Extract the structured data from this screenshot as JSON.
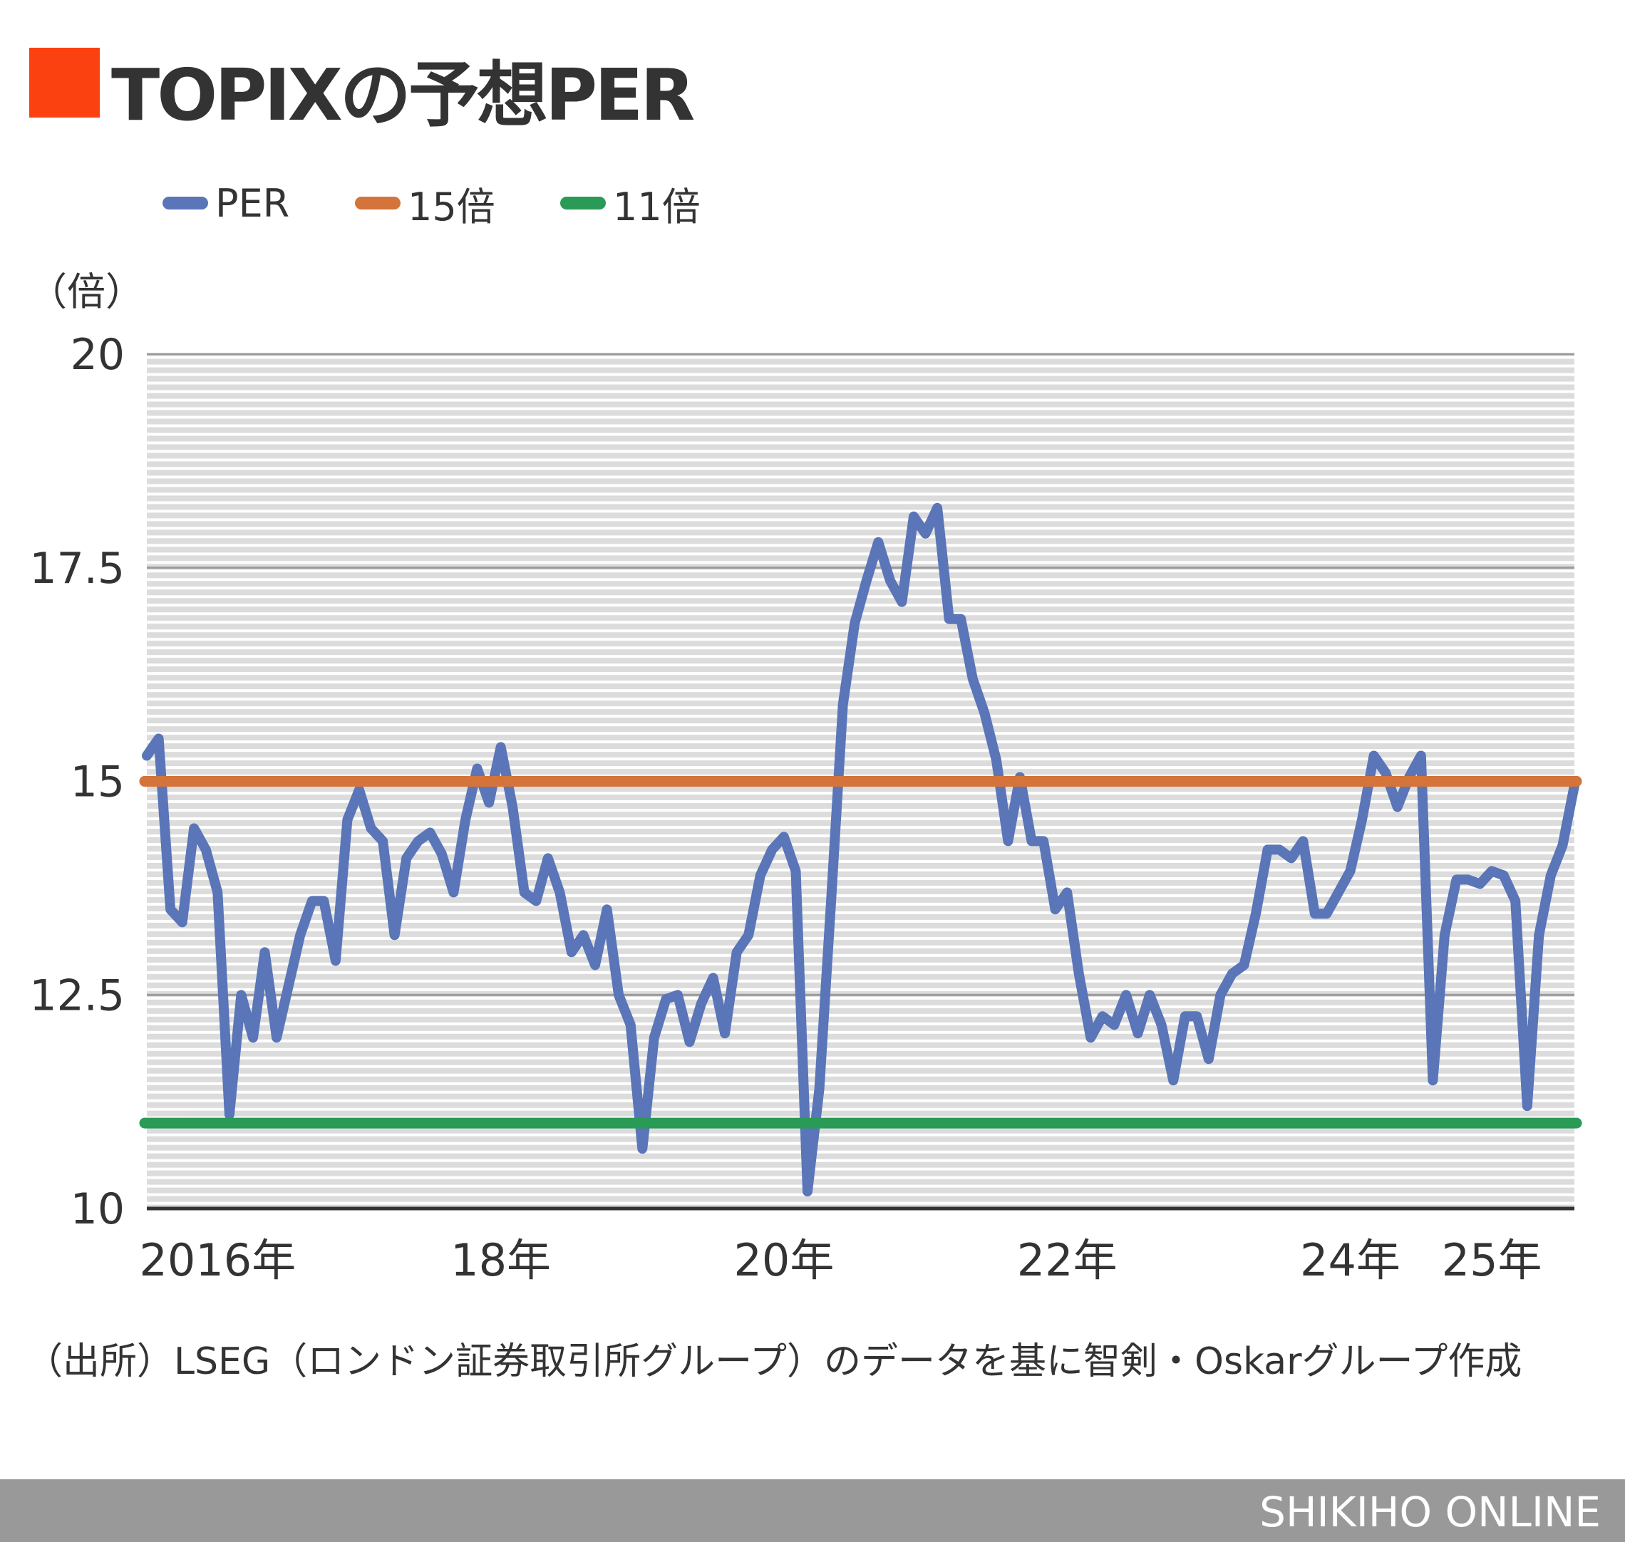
{
  "title": "TOPIXの予想PER",
  "colors": {
    "title_mark": "#FC4111",
    "per": "#5A75B8",
    "line15": "#D4743A",
    "line11": "#2A9A57",
    "footer": "#999999"
  },
  "legend": [
    {
      "label": "PER",
      "color": "#5A75B8"
    },
    {
      "label": "15倍",
      "color": "#D4743A"
    },
    {
      "label": "11倍",
      "color": "#2A9A57"
    }
  ],
  "unit_label": "（倍）",
  "source": "（出所）LSEG（ロンドン証券取引所グループ）のデータを基に智剣・Oskarグループ作成",
  "footer": "SHIKIHO ONLINE",
  "chart_data": {
    "type": "line",
    "title": "TOPIXの予想PER",
    "ylabel": "（倍）",
    "ylim": [
      10,
      20
    ],
    "xlim": [
      "2015-07",
      "2025-08"
    ],
    "yticks": [
      {
        "value": 10,
        "label": "10"
      },
      {
        "value": 12.5,
        "label": "12.5"
      },
      {
        "value": 15,
        "label": "15"
      },
      {
        "value": 17.5,
        "label": "17.5"
      },
      {
        "value": 20,
        "label": "20"
      }
    ],
    "xticks": [
      {
        "value": "2016-01",
        "label": "2016年"
      },
      {
        "value": "2018-01",
        "label": "18年"
      },
      {
        "value": "2020-01",
        "label": "20年"
      },
      {
        "value": "2022-01",
        "label": "22年"
      },
      {
        "value": "2024-01",
        "label": "24年"
      },
      {
        "value": "2025-01",
        "label": "25年"
      }
    ],
    "grid": {
      "major_step": 2.5,
      "minor_step": 0.1
    },
    "legend_position": "top-left",
    "series": [
      {
        "name": "PER",
        "x": [
          "2015-07",
          "2015-08",
          "2015-09",
          "2015-10",
          "2015-11",
          "2015-12",
          "2016-01",
          "2016-02",
          "2016-03",
          "2016-04",
          "2016-05",
          "2016-06",
          "2016-07",
          "2016-08",
          "2016-09",
          "2016-10",
          "2016-11",
          "2016-12",
          "2017-01",
          "2017-02",
          "2017-03",
          "2017-04",
          "2017-05",
          "2017-06",
          "2017-07",
          "2017-08",
          "2017-09",
          "2017-10",
          "2017-11",
          "2017-12",
          "2018-01",
          "2018-02",
          "2018-03",
          "2018-04",
          "2018-05",
          "2018-06",
          "2018-07",
          "2018-08",
          "2018-09",
          "2018-10",
          "2018-11",
          "2018-12",
          "2019-01",
          "2019-02",
          "2019-03",
          "2019-04",
          "2019-05",
          "2019-06",
          "2019-07",
          "2019-08",
          "2019-09",
          "2019-10",
          "2019-11",
          "2019-12",
          "2020-01",
          "2020-02",
          "2020-03",
          "2020-04",
          "2020-05",
          "2020-06",
          "2020-07",
          "2020-08",
          "2020-09",
          "2020-10",
          "2020-11",
          "2020-12",
          "2021-01",
          "2021-02",
          "2021-03",
          "2021-04",
          "2021-05",
          "2021-06",
          "2021-07",
          "2021-08",
          "2021-09",
          "2021-10",
          "2021-11",
          "2021-12",
          "2022-01",
          "2022-02",
          "2022-03",
          "2022-04",
          "2022-05",
          "2022-06",
          "2022-07",
          "2022-08",
          "2022-09",
          "2022-10",
          "2022-11",
          "2022-12",
          "2023-01",
          "2023-02",
          "2023-03",
          "2023-04",
          "2023-05",
          "2023-06",
          "2023-07",
          "2023-08",
          "2023-09",
          "2023-10",
          "2023-11",
          "2023-12",
          "2024-01",
          "2024-02",
          "2024-03",
          "2024-04",
          "2024-05",
          "2024-06",
          "2024-07",
          "2024-08",
          "2024-09",
          "2024-10",
          "2024-11",
          "2024-12",
          "2025-01",
          "2025-02",
          "2025-03",
          "2025-04",
          "2025-05",
          "2025-06",
          "2025-07",
          "2025-08"
        ],
        "values": [
          15.3,
          15.5,
          13.5,
          13.35,
          14.45,
          14.2,
          13.7,
          11.1,
          12.5,
          12.0,
          13.0,
          12.0,
          12.6,
          13.2,
          13.6,
          13.6,
          12.9,
          14.55,
          14.9,
          14.45,
          14.3,
          13.2,
          14.1,
          14.3,
          14.4,
          14.15,
          13.7,
          14.55,
          15.15,
          14.75,
          15.4,
          14.7,
          13.7,
          13.6,
          14.1,
          13.7,
          13.0,
          13.2,
          12.85,
          13.5,
          12.5,
          12.15,
          10.7,
          12.0,
          12.45,
          12.5,
          11.95,
          12.4,
          12.7,
          12.05,
          13.0,
          13.2,
          13.9,
          14.2,
          14.35,
          13.95,
          10.2,
          11.4,
          13.6,
          15.9,
          16.85,
          17.35,
          17.8,
          17.35,
          17.1,
          18.1,
          17.9,
          18.2,
          16.9,
          16.9,
          16.2,
          15.8,
          15.25,
          14.3,
          15.05,
          14.3,
          14.3,
          13.5,
          13.7,
          12.75,
          12.0,
          12.25,
          12.15,
          12.5,
          12.05,
          12.5,
          12.15,
          11.5,
          12.25,
          12.25,
          11.75,
          12.5,
          12.75,
          12.85,
          13.45,
          14.2,
          14.2,
          14.1,
          14.3,
          13.45,
          13.45,
          13.7,
          13.95,
          14.55,
          15.3,
          15.1,
          14.7,
          15.05,
          15.3,
          11.5,
          13.2,
          13.85,
          13.85,
          13.8,
          13.95,
          13.9,
          13.6,
          11.2,
          13.2,
          13.9,
          14.25,
          14.95
        ]
      },
      {
        "name": "15倍",
        "constant": 15
      },
      {
        "name": "11倍",
        "constant": 11
      }
    ]
  }
}
